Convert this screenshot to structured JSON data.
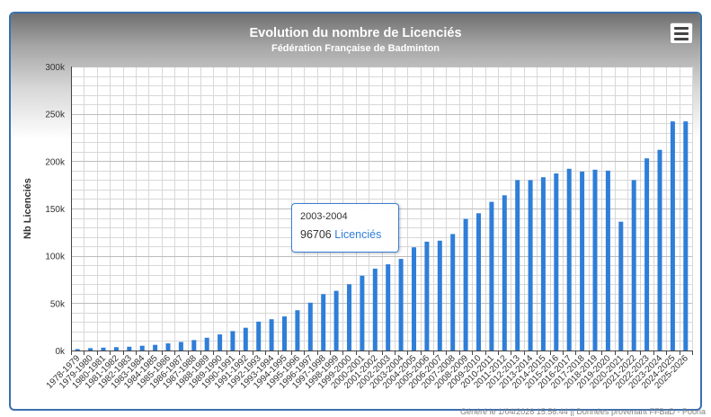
{
  "header": {
    "title": "Evolution du nombre de Licenciés",
    "subtitle": "Fédération Française de Badminton"
  },
  "footer_text": "Généré le 1/04/2026 15:56:44 || Données provenant FFBaD - Poona",
  "tooltip": {
    "category": "2003-2004",
    "value": "96706",
    "series": "Licenciés"
  },
  "colors": {
    "bar": "#2f7ed8",
    "grid": "#d8d8d8",
    "frame": "#3a6fb0"
  },
  "menu_icon": "hamburger-menu-icon",
  "chart_data": {
    "type": "bar",
    "ylabel": "Nb Licenciés",
    "xlabel": "",
    "ylim": [
      0,
      300000
    ],
    "yticks": [
      0,
      50000,
      100000,
      150000,
      200000,
      250000,
      300000
    ],
    "ytick_labels": [
      "0k",
      "50k",
      "100k",
      "150k",
      "200k",
      "250k",
      "300k"
    ],
    "grid": true,
    "legend": "none",
    "categories": [
      "1978-1979",
      "1979-1980",
      "1980-1981",
      "1981-1982",
      "1982-1983",
      "1983-1984",
      "1984-1985",
      "1985-1986",
      "1986-1987",
      "1987-1988",
      "1988-1989",
      "1989-1990",
      "1990-1991",
      "1991-1992",
      "1992-1993",
      "1993-1994",
      "1994-1995",
      "1995-1996",
      "1996-1997",
      "1997-1998",
      "1998-1999",
      "1999-2000",
      "2000-2001",
      "2001-2002",
      "2002-2003",
      "2003-2004",
      "2004-2005",
      "2005-2006",
      "2006-2007",
      "2007-2008",
      "2008-2009",
      "2009-2010",
      "2010-2011",
      "2011-2012",
      "2012-2013",
      "2013-2014",
      "2014-2015",
      "2015-2016",
      "2016-2017",
      "2017-2018",
      "2018-2019",
      "2019-2020",
      "2020-2021",
      "2021-2022",
      "2022-2023",
      "2023-2024",
      "2024-2025",
      "2025-2026"
    ],
    "series": [
      {
        "name": "Licenciés",
        "values": [
          1500,
          2500,
          3000,
          3500,
          4000,
          5000,
          6000,
          7500,
          9000,
          11000,
          13500,
          17000,
          20500,
          24000,
          30500,
          33000,
          36000,
          42500,
          50500,
          59500,
          63000,
          70000,
          79000,
          86500,
          91000,
          96706,
          109000,
          115000,
          116000,
          123000,
          139000,
          145000,
          157000,
          164000,
          180000,
          180000,
          183000,
          187000,
          192000,
          189000,
          191000,
          190000,
          136000,
          180000,
          203000,
          212000,
          242000,
          242000
        ]
      }
    ]
  }
}
